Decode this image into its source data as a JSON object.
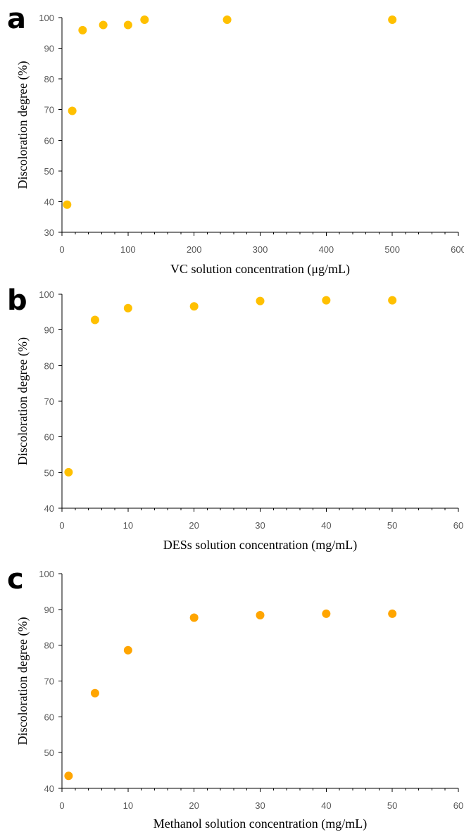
{
  "chart_data": [
    {
      "type": "scatter",
      "panel_label": "a",
      "title": "",
      "xlabel": "VC solution concentration (μg/mL)",
      "ylabel": "Discoloration degree (%)",
      "xlim": [
        0,
        600
      ],
      "ylim": [
        30,
        100
      ],
      "xticks": [
        0,
        100,
        200,
        300,
        400,
        500,
        600
      ],
      "yticks": [
        30,
        40,
        50,
        60,
        70,
        80,
        90,
        100
      ],
      "grid": false,
      "legend": "none",
      "color": "#FFC000",
      "series": [
        {
          "x": [
            7.8,
            15.6,
            31.25,
            62.5,
            100,
            125,
            250,
            500
          ],
          "y": [
            39.0,
            69.6,
            95.9,
            97.6,
            97.6,
            99.3,
            99.3,
            99.3
          ]
        }
      ]
    },
    {
      "type": "scatter",
      "panel_label": "b",
      "title": "",
      "xlabel": "DESs solution concentration (mg/mL)",
      "ylabel": "Discoloration degree (%)",
      "xlim": [
        0,
        60
      ],
      "ylim": [
        40,
        100
      ],
      "xticks": [
        0,
        10,
        20,
        30,
        40,
        50,
        60
      ],
      "yticks": [
        40,
        50,
        60,
        70,
        80,
        90,
        100
      ],
      "grid": false,
      "legend": "none",
      "color": "#FFC000",
      "series": [
        {
          "x": [
            1,
            5,
            10,
            20,
            30,
            40,
            50
          ],
          "y": [
            50.1,
            92.8,
            96.1,
            96.6,
            98.1,
            98.3,
            98.3
          ]
        }
      ]
    },
    {
      "type": "scatter",
      "panel_label": "c",
      "title": "",
      "xlabel": "Methanol solution concentration (mg/mL)",
      "ylabel": "Discoloration degree (%)",
      "xlim": [
        0,
        60
      ],
      "ylim": [
        40,
        100
      ],
      "xticks": [
        0,
        10,
        20,
        30,
        40,
        50,
        60
      ],
      "yticks": [
        40,
        50,
        60,
        70,
        80,
        90,
        100
      ],
      "grid": false,
      "legend": "none",
      "color": "#FFA500",
      "series": [
        {
          "x": [
            1,
            5,
            10,
            20,
            30,
            40,
            50
          ],
          "y": [
            43.5,
            66.6,
            78.6,
            87.7,
            88.4,
            88.8,
            88.8
          ]
        }
      ]
    }
  ]
}
